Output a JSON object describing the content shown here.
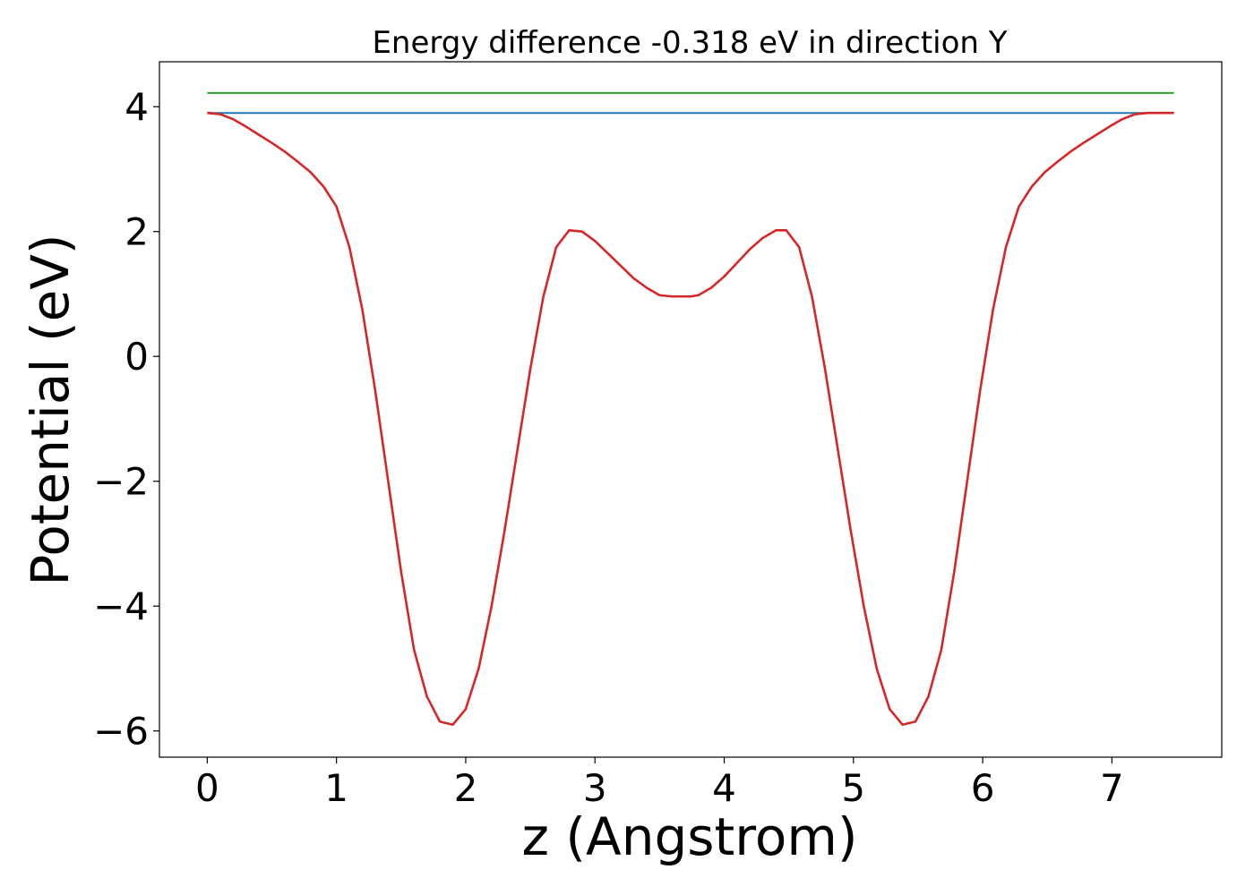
{
  "chart_data": {
    "type": "line",
    "title": "Energy difference -0.318 eV in direction Y",
    "xlabel": "z (Angstrom)",
    "ylabel": "Potential (eV)",
    "xlim": [
      -0.37,
      7.85
    ],
    "ylim": [
      -6.42,
      4.72
    ],
    "xticks": [
      0,
      1,
      2,
      3,
      4,
      5,
      6,
      7
    ],
    "yticks": [
      -6,
      -4,
      -2,
      0,
      2,
      4
    ],
    "xtick_labels": [
      "0",
      "1",
      "2",
      "3",
      "4",
      "5",
      "6",
      "7"
    ],
    "ytick_labels": [
      "−6",
      "−4",
      "−2",
      "0",
      "2",
      "4"
    ],
    "grid": false,
    "legend": "none",
    "series": [
      {
        "color": "#2ca02c",
        "x": [
          0,
          7.48
        ],
        "y": [
          4.22,
          4.22
        ]
      },
      {
        "color": "#1f77b4",
        "x": [
          0,
          7.48
        ],
        "y": [
          3.9,
          3.9
        ]
      },
      {
        "color": "#d62728",
        "x": [
          0,
          0.1,
          0.2,
          0.3,
          0.4,
          0.5,
          0.6,
          0.7,
          0.8,
          0.9,
          1.0,
          1.1,
          1.2,
          1.3,
          1.4,
          1.5,
          1.6,
          1.7,
          1.8,
          1.9,
          2.0,
          2.1,
          2.2,
          2.3,
          2.4,
          2.5,
          2.6,
          2.7,
          2.8,
          2.9,
          3.0,
          3.1,
          3.2,
          3.3,
          3.4,
          3.5,
          3.6,
          3.7,
          3.74,
          3.8,
          3.9,
          4.0,
          4.1,
          4.2,
          4.3,
          4.4,
          4.48,
          4.58,
          4.68,
          4.78,
          4.88,
          4.98,
          5.08,
          5.18,
          5.28,
          5.38,
          5.48,
          5.58,
          5.68,
          5.78,
          5.88,
          5.98,
          6.08,
          6.18,
          6.28,
          6.38,
          6.48,
          6.58,
          6.68,
          6.78,
          6.88,
          6.98,
          7.08,
          7.18,
          7.28,
          7.38,
          7.48
        ],
        "y": [
          3.9,
          3.88,
          3.8,
          3.68,
          3.55,
          3.42,
          3.28,
          3.12,
          2.95,
          2.72,
          2.4,
          1.75,
          0.75,
          -0.55,
          -2.0,
          -3.45,
          -4.7,
          -5.45,
          -5.85,
          -5.9,
          -5.65,
          -5.0,
          -4.0,
          -2.8,
          -1.5,
          -0.2,
          0.95,
          1.75,
          2.02,
          2.0,
          1.85,
          1.65,
          1.45,
          1.25,
          1.1,
          0.98,
          0.96,
          0.96,
          0.96,
          0.98,
          1.1,
          1.28,
          1.5,
          1.72,
          1.9,
          2.02,
          2.02,
          1.75,
          0.95,
          -0.2,
          -1.5,
          -2.8,
          -4.0,
          -5.0,
          -5.65,
          -5.9,
          -5.85,
          -5.45,
          -4.7,
          -3.45,
          -2.0,
          -0.55,
          0.75,
          1.75,
          2.4,
          2.72,
          2.95,
          3.12,
          3.28,
          3.42,
          3.55,
          3.68,
          3.8,
          3.88,
          3.9,
          3.9,
          3.9
        ]
      }
    ]
  }
}
